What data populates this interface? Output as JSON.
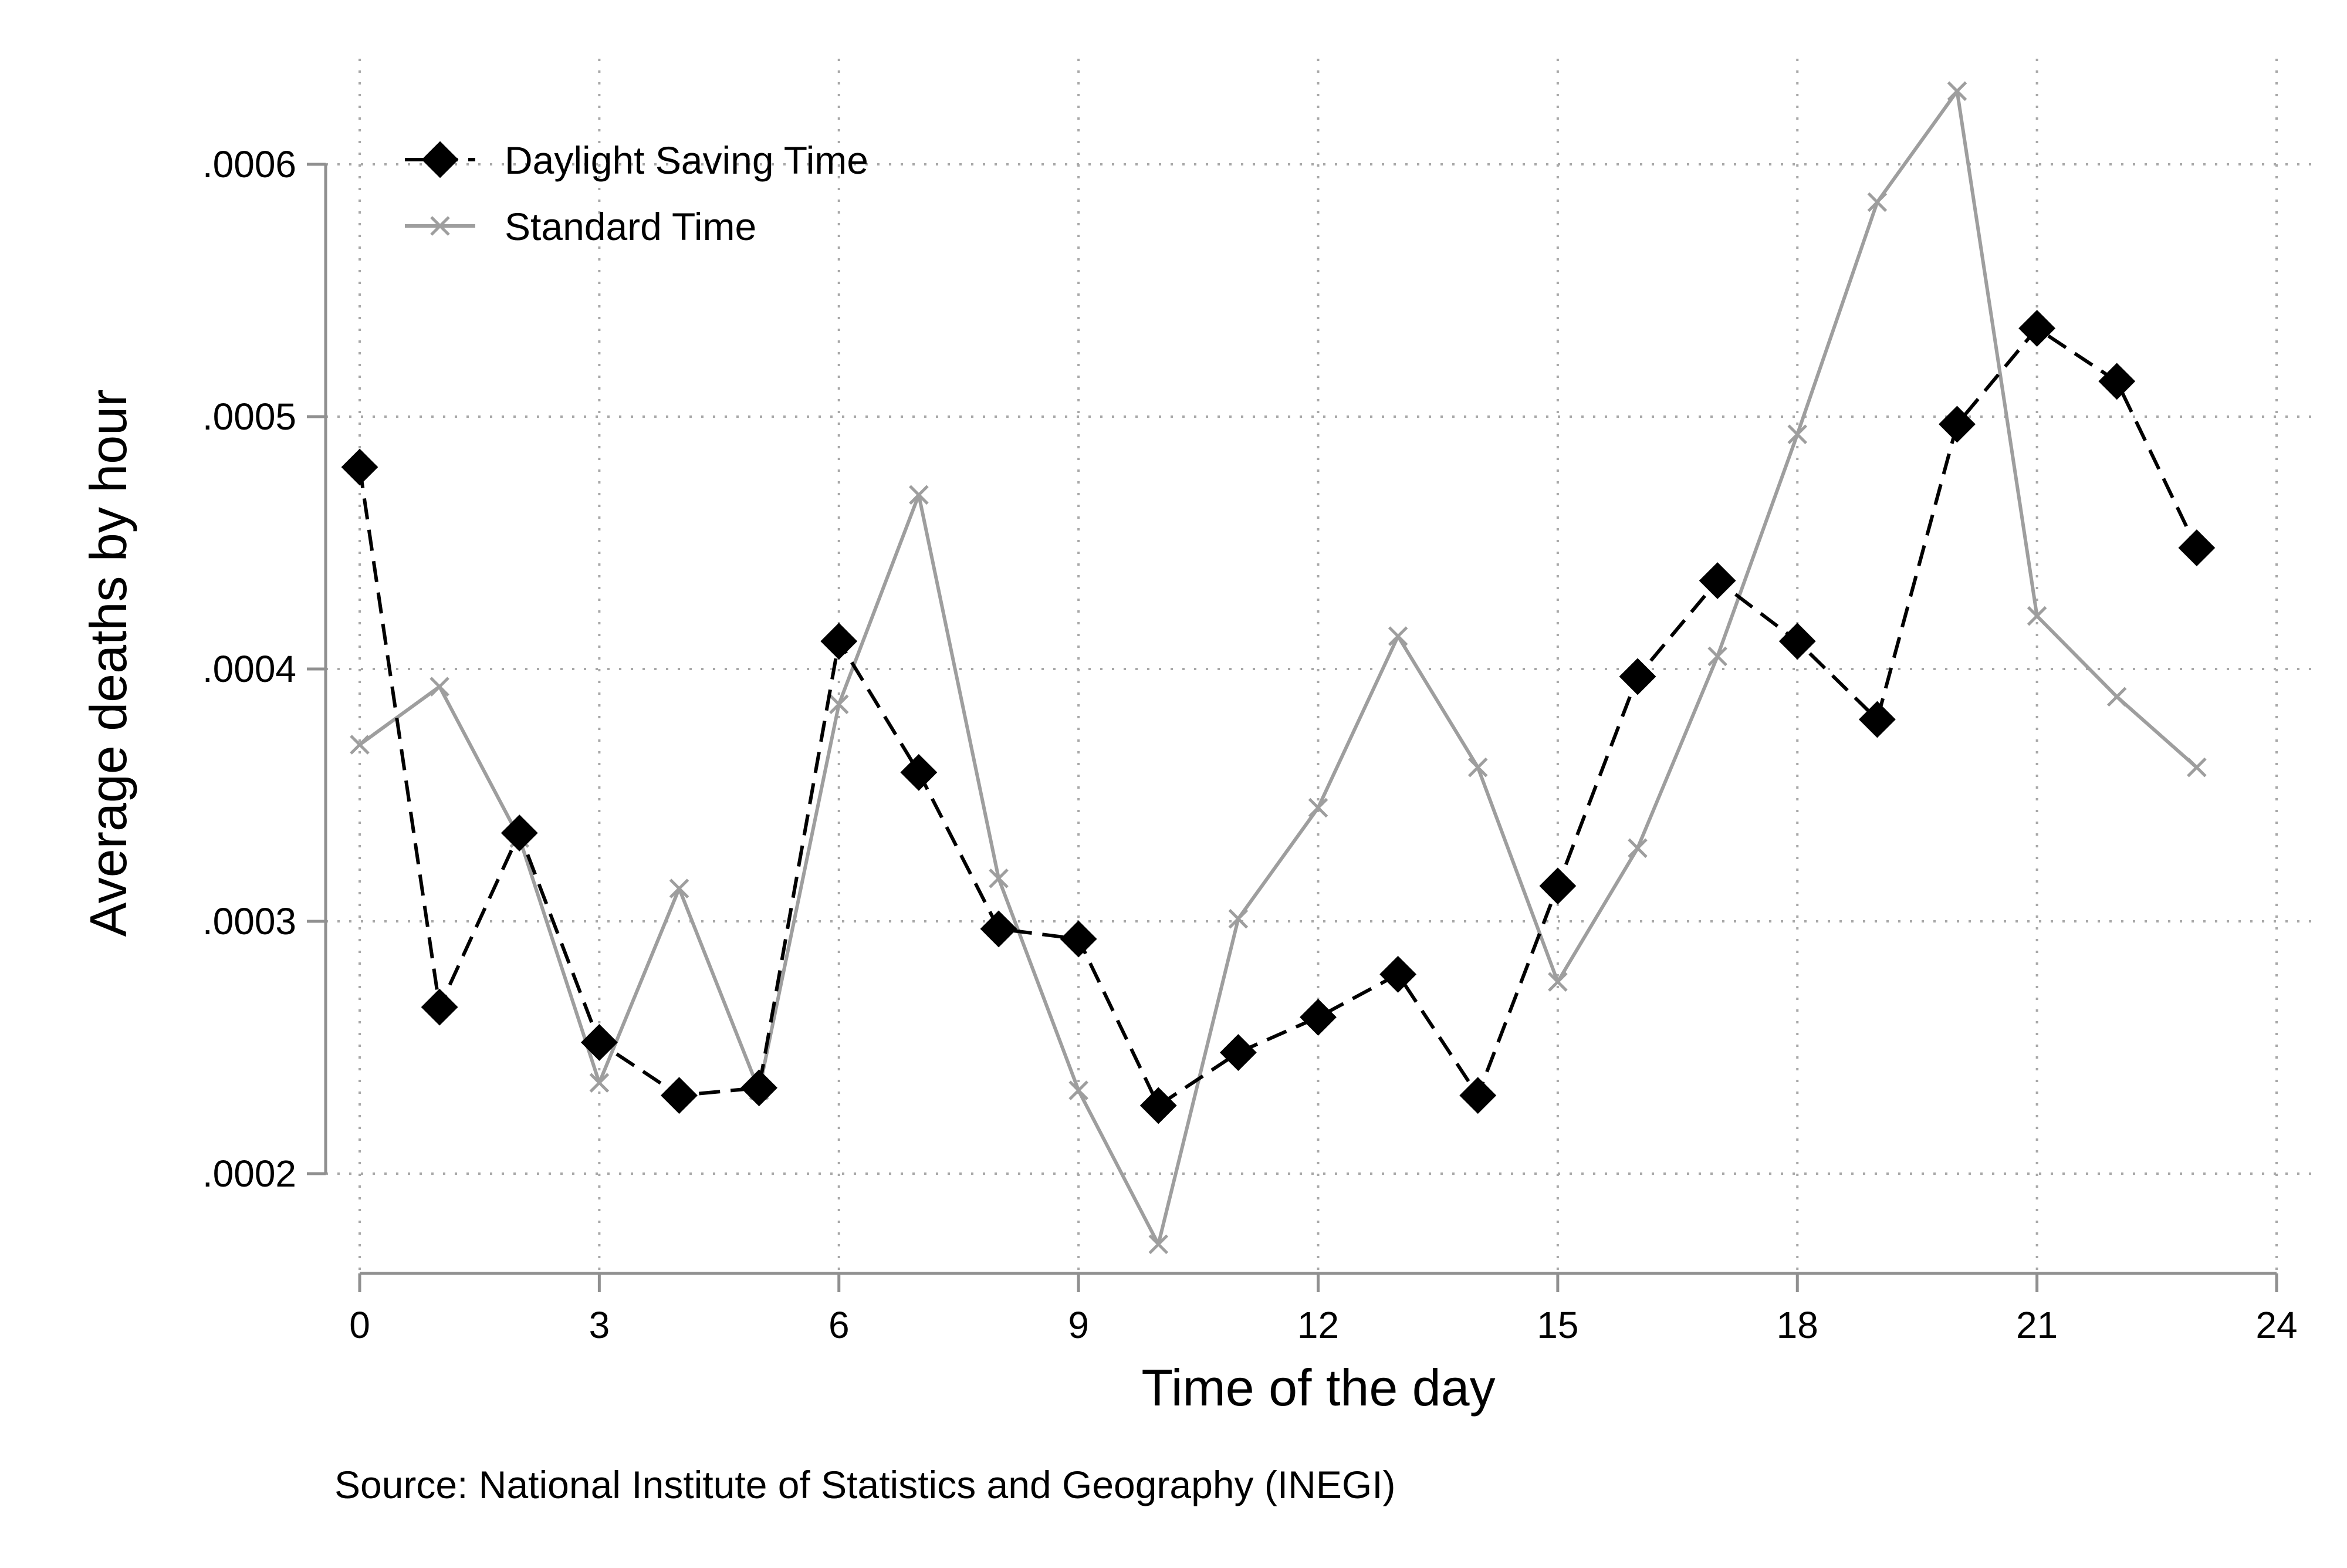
{
  "chart_data": {
    "type": "line",
    "xlabel": "Time of the day",
    "ylabel": "Average deaths by hour",
    "source": "Source: National Institute of Statistics and Geography (INEGI)",
    "xlim": [
      0,
      24
    ],
    "ylim": [
      0.00016,
      0.00064
    ],
    "x_ticks": [
      {
        "value": 0,
        "label": "0"
      },
      {
        "value": 3,
        "label": "3"
      },
      {
        "value": 6,
        "label": "6"
      },
      {
        "value": 9,
        "label": "9"
      },
      {
        "value": 12,
        "label": "12"
      },
      {
        "value": 15,
        "label": "15"
      },
      {
        "value": 18,
        "label": "18"
      },
      {
        "value": 21,
        "label": "21"
      },
      {
        "value": 24,
        "label": "24"
      }
    ],
    "y_ticks": [
      {
        "value": 0.0002,
        "label": ".0002"
      },
      {
        "value": 0.0003,
        "label": ".0003"
      },
      {
        "value": 0.0004,
        "label": ".0004"
      },
      {
        "value": 0.0005,
        "label": ".0005"
      },
      {
        "value": 0.0006,
        "label": ".0006"
      }
    ],
    "grid": true,
    "legend_position": "top-left",
    "x": [
      0,
      1,
      2,
      3,
      4,
      5,
      6,
      7,
      8,
      9,
      10,
      11,
      12,
      13,
      14,
      15,
      16,
      17,
      18,
      19,
      20,
      21,
      22,
      23
    ],
    "series": [
      {
        "name": "Daylight Saving Time",
        "color": "#000000",
        "line_style": "dashed",
        "marker": "diamond",
        "values": [
          0.00048,
          0.000266,
          0.000335,
          0.000252,
          0.000231,
          0.000234,
          0.000411,
          0.000359,
          0.000297,
          0.000293,
          0.000227,
          0.000248,
          0.000262,
          0.000279,
          0.000231,
          0.000314,
          0.000397,
          0.000435,
          0.000411,
          0.00038,
          0.000497,
          0.000535,
          0.000514,
          0.000448
        ]
      },
      {
        "name": "Standard Time",
        "color": "#9e9e9e",
        "line_style": "solid",
        "marker": "x",
        "values": [
          0.00037,
          0.000393,
          0.000333,
          0.000236,
          0.000313,
          0.000233,
          0.000386,
          0.000469,
          0.000317,
          0.000233,
          0.000172,
          0.000301,
          0.000345,
          0.000413,
          0.000361,
          0.000276,
          0.000329,
          0.000405,
          0.000493,
          0.000585,
          0.000629,
          0.000421,
          0.000389,
          0.000361
        ]
      }
    ]
  }
}
